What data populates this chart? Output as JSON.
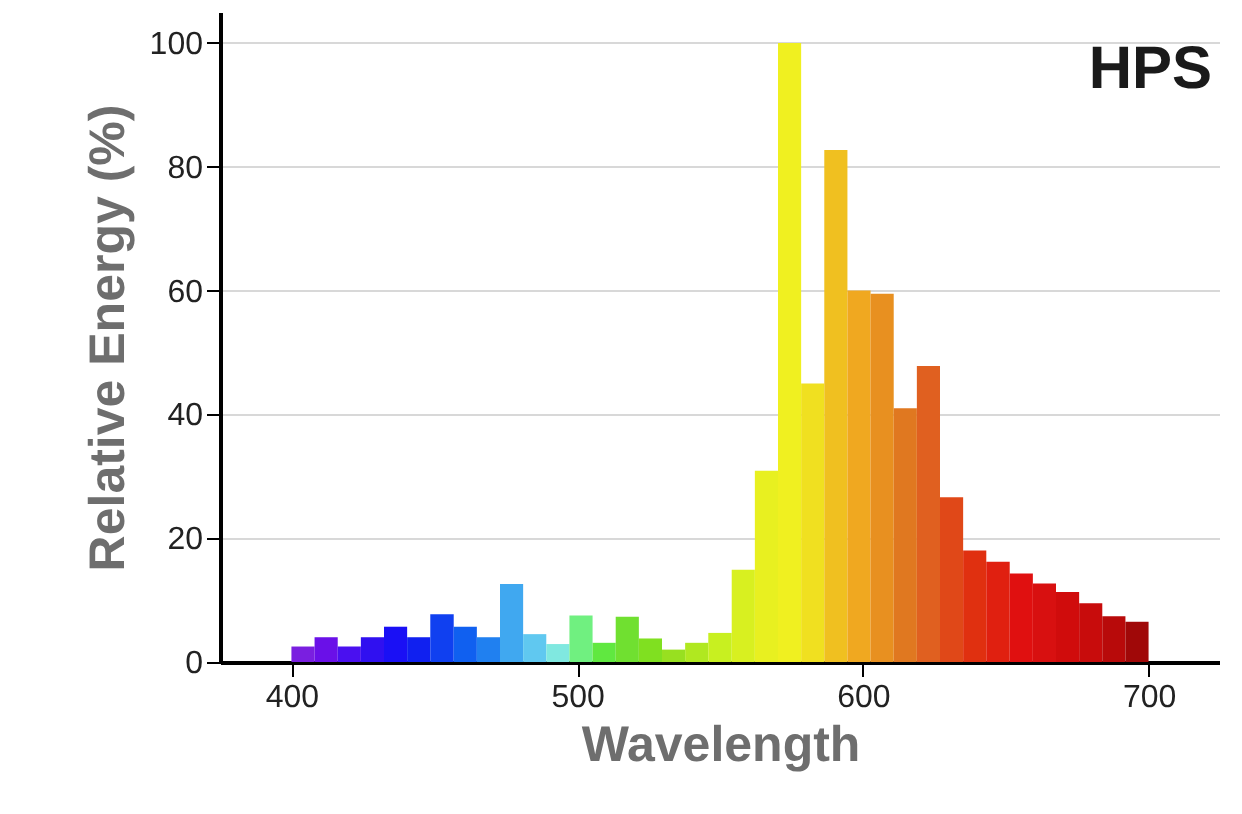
{
  "chart_data": {
    "type": "histogram",
    "xlabel": "Wavelength",
    "ylabel": "Relative Energy (%)",
    "annotations": [
      "HPS"
    ],
    "bins": [
      400,
      408.1,
      416.2,
      424.3,
      432.4,
      440.5,
      448.6,
      456.8,
      464.9,
      473,
      481.1,
      489.2,
      497.3,
      505.4,
      513.5,
      521.6,
      529.7,
      537.8,
      545.9,
      554.1,
      562.2,
      570.3,
      578.4,
      586.5,
      594.6,
      602.7,
      610.8,
      618.9,
      627,
      635.1,
      643.2,
      651.4,
      659.5,
      667.6,
      675.7,
      683.8,
      691.9,
      700
    ],
    "values": [
      2.5,
      4,
      2.5,
      4,
      5.7,
      4,
      7.7,
      5.7,
      4,
      12.6,
      4.5,
      2.9,
      7.5,
      3.1,
      7.3,
      3.8,
      2,
      3.1,
      4.7,
      14.9,
      30.9,
      100,
      45,
      82.7,
      60,
      59.5,
      41,
      47.8,
      26.6,
      18,
      16.2,
      14.3,
      12.7,
      11.3,
      9.5,
      7.4,
      6.5
    ],
    "colors": [
      "#7a1fe0",
      "#6a10e8",
      "#4a10f0",
      "#3010f0",
      "#1a10f5",
      "#1020f0",
      "#1040f0",
      "#1060f0",
      "#2080f0",
      "#40a8f0",
      "#60c8f0",
      "#80e8e0",
      "#70f080",
      "#60e840",
      "#70e030",
      "#80e020",
      "#98e020",
      "#b0e820",
      "#c8f020",
      "#d8f020",
      "#e8f020",
      "#f0f020",
      "#f0e020",
      "#f0c020",
      "#f0a820",
      "#e89020",
      "#e07820",
      "#e06020",
      "#e04818",
      "#e03010",
      "#e02010",
      "#e01010",
      "#d81010",
      "#d00c0c",
      "#c80c0c",
      "#b80a0a",
      "#a00808"
    ],
    "xlim": [
      375,
      725
    ],
    "xticks": [
      400,
      500,
      600,
      700
    ],
    "ylim": [
      0,
      105
    ],
    "yticks": [
      0,
      20,
      40,
      60,
      80,
      100
    ],
    "grid": "y"
  }
}
